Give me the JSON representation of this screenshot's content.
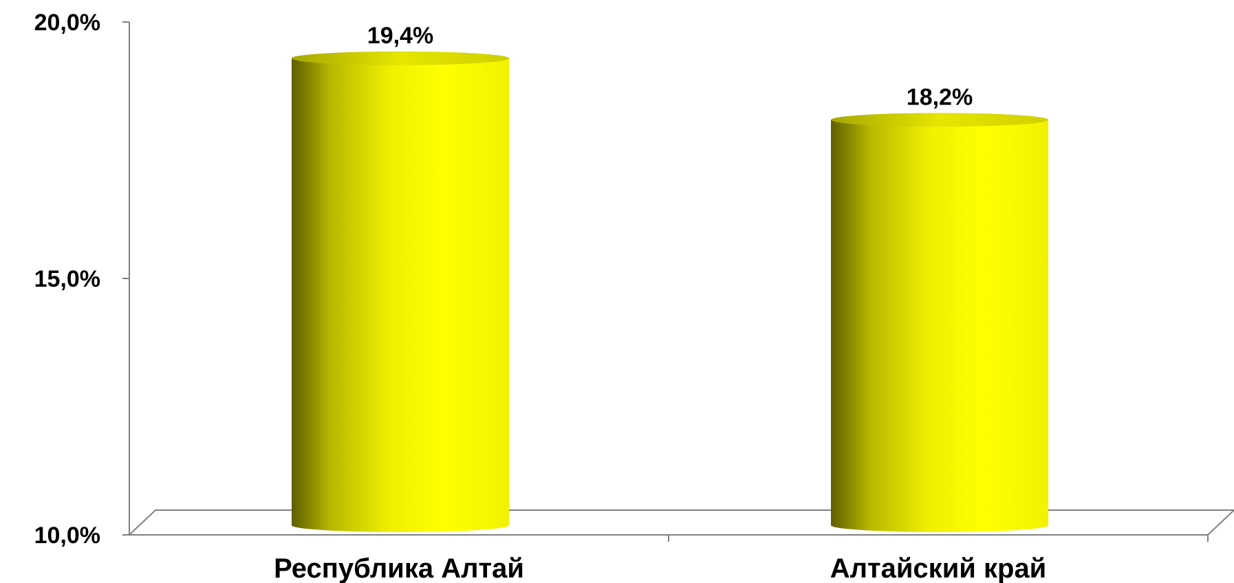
{
  "chart_data": {
    "type": "bar",
    "categories": [
      "Республика Алтай",
      "Алтайский край"
    ],
    "values": [
      19.4,
      18.2
    ],
    "data_labels": [
      "19,4%",
      "18,2%"
    ],
    "y_ticks": [
      10,
      15,
      20
    ],
    "y_tick_labels": [
      "10,0%",
      "15,0%",
      "20,0%"
    ],
    "ylim": [
      10,
      20
    ],
    "bar_style": "3d-cylinder",
    "bar_color": "#FFFF00",
    "bar_shade_color": "#6B6B00",
    "grid": false,
    "legend": "none"
  }
}
